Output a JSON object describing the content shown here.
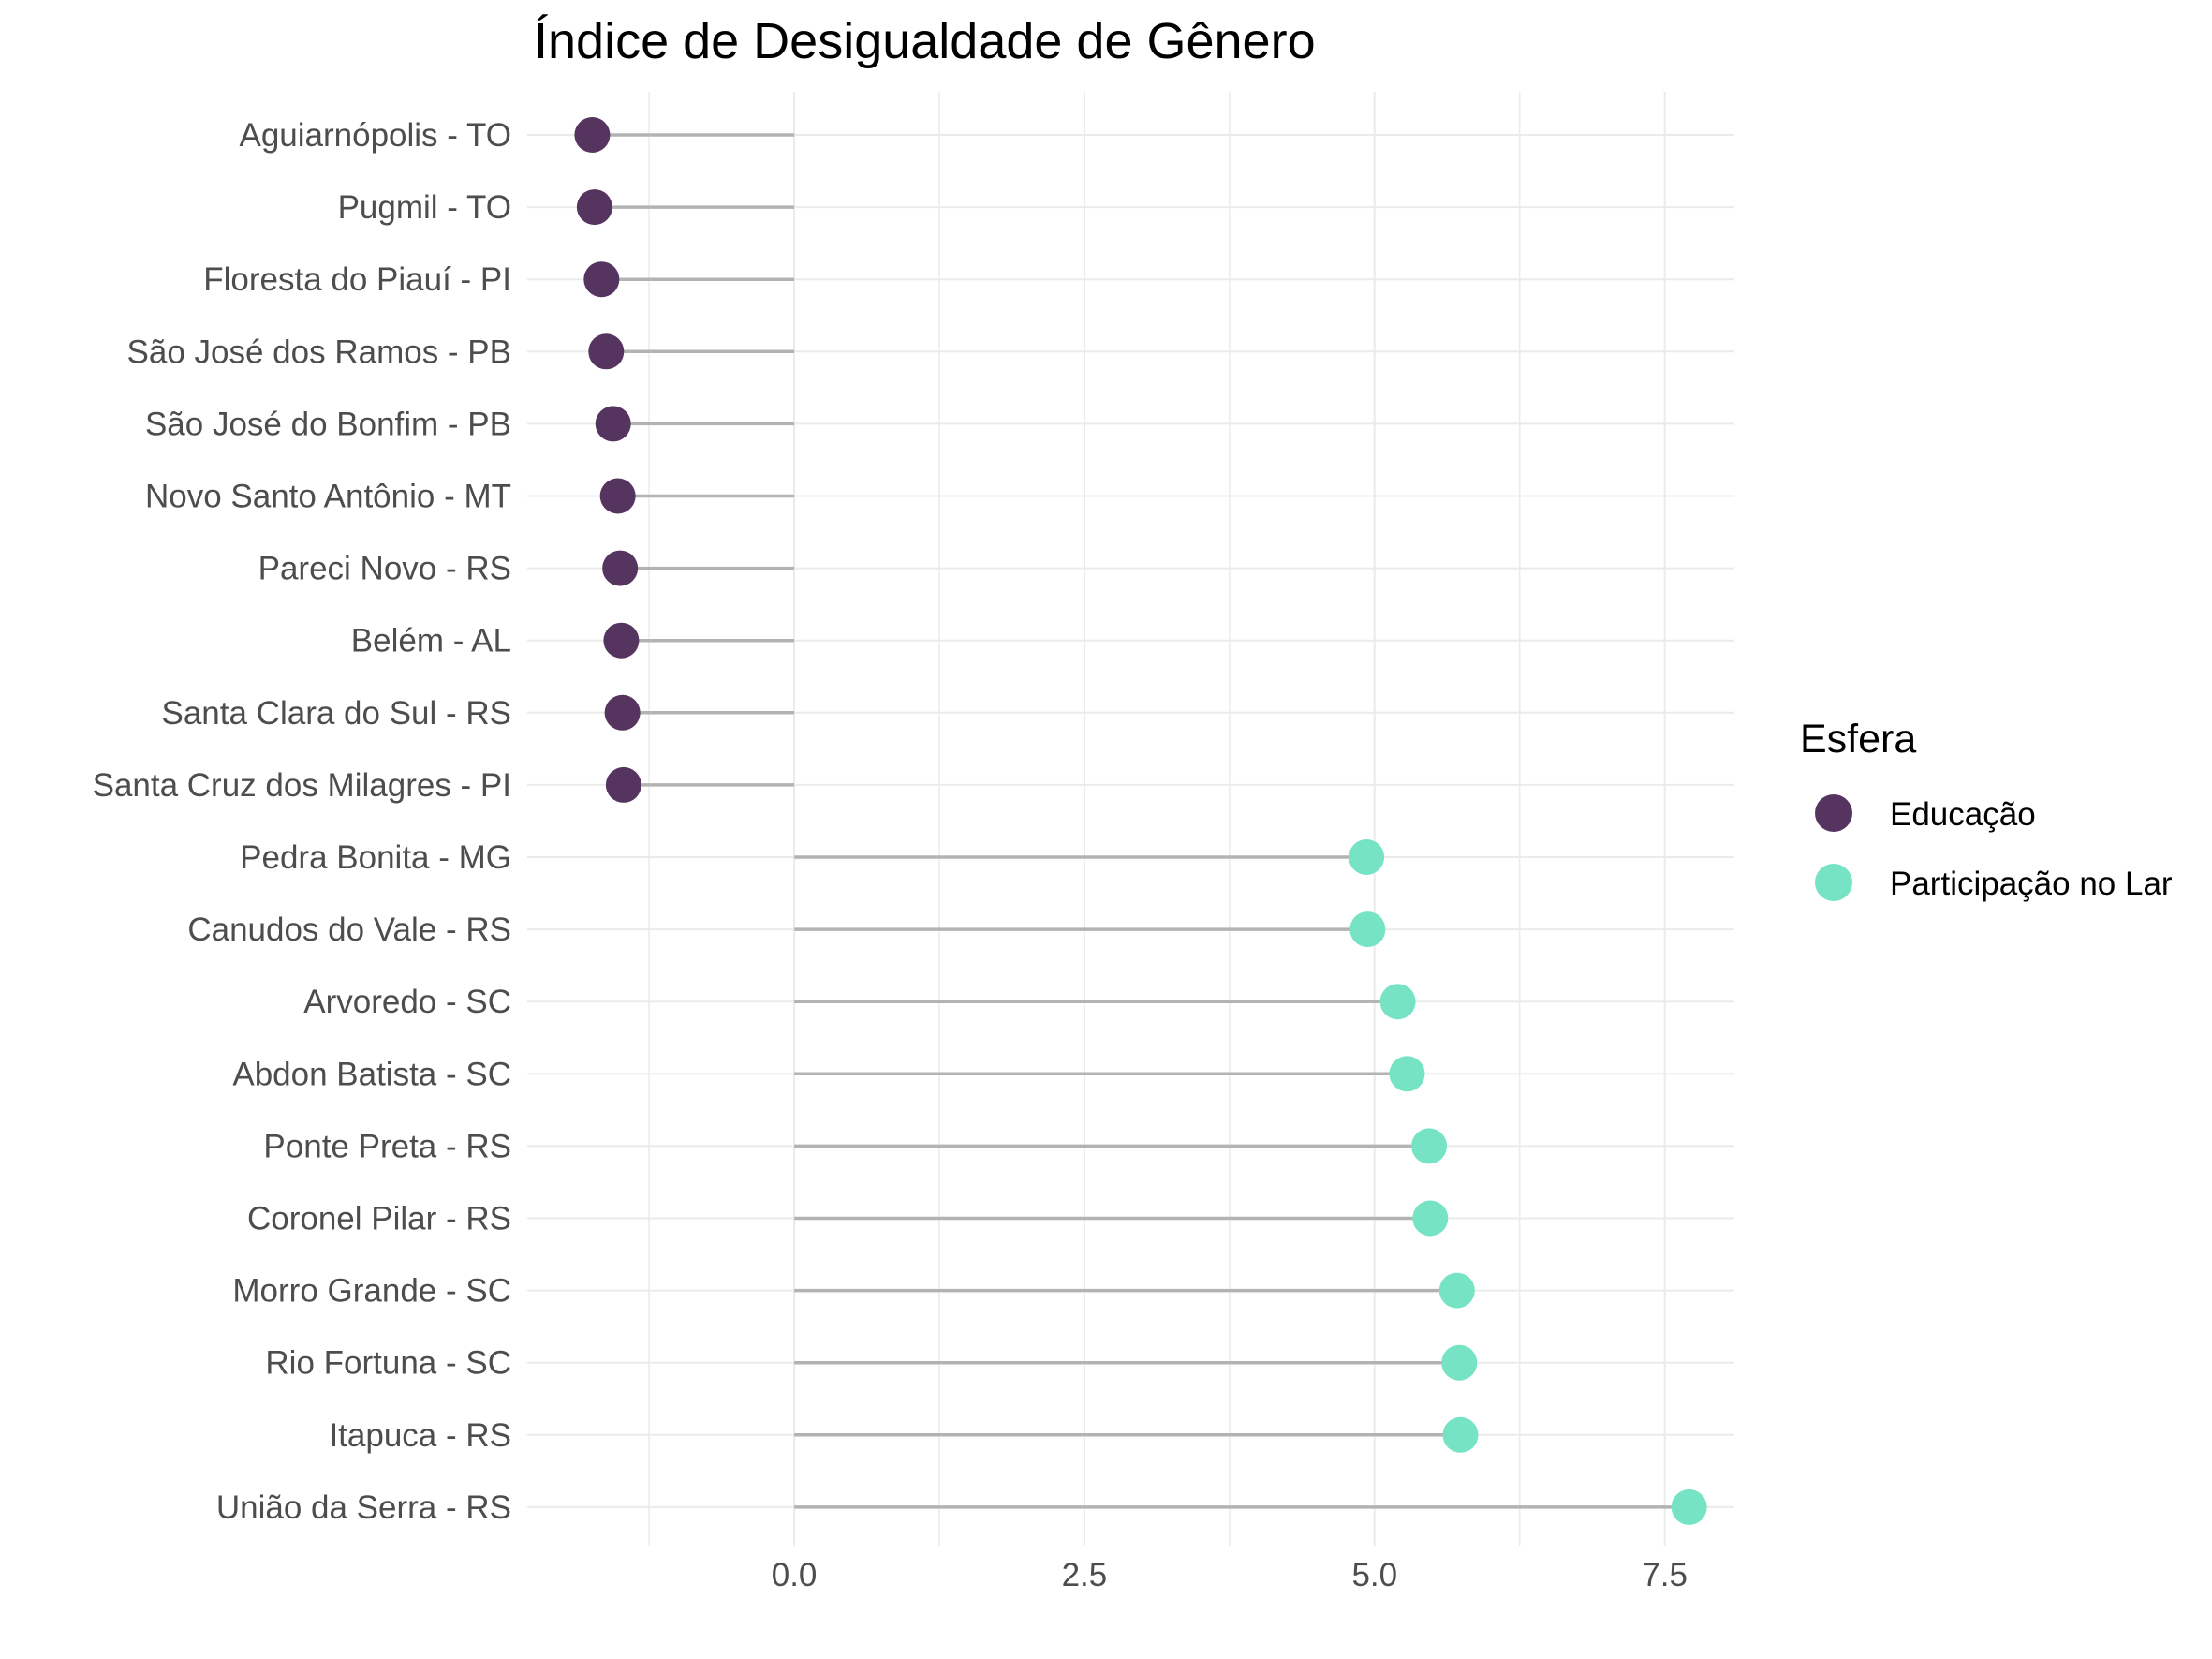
{
  "chart_data": {
    "type": "lollipop",
    "title": "Índice de Desigualdade de Gênero",
    "xlabel": "",
    "ylabel": "",
    "xlim": [
      -2.3,
      8.1
    ],
    "x_ticks": [
      0.0,
      2.5,
      5.0,
      7.5
    ],
    "x_tick_labels": [
      "0.0",
      "2.5",
      "5.0",
      "7.5"
    ],
    "grid": true,
    "legend": {
      "title": "Esfera",
      "position": "right",
      "entries": [
        {
          "label": "Educação",
          "color": "#55355F"
        },
        {
          "label": "Participação no Lar",
          "color": "#76E4C4"
        }
      ]
    },
    "categories": [
      "Aguiarnópolis - TO",
      "Pugmil - TO",
      "Floresta do Piauí - PI",
      "São José dos Ramos - PB",
      "São José do Bonfim - PB",
      "Novo Santo Antônio - MT",
      "Pareci Novo - RS",
      "Belém - AL",
      "Santa Clara do Sul - RS",
      "Santa Cruz dos Milagres - PI",
      "Pedra Bonita - MG",
      "Canudos do Vale - RS",
      "Arvoredo - SC",
      "Abdon Batista - SC",
      "Ponte Preta - RS",
      "Coronel Pilar - RS",
      "Morro Grande - SC",
      "Rio Fortuna - SC",
      "Itapuca - RS",
      "União da Serra - RS"
    ],
    "series": [
      {
        "name": "Educação",
        "color": "#55355F",
        "values": [
          -1.74,
          -1.72,
          -1.66,
          -1.62,
          -1.56,
          -1.52,
          -1.5,
          -1.49,
          -1.48,
          -1.47,
          null,
          null,
          null,
          null,
          null,
          null,
          null,
          null,
          null,
          null
        ]
      },
      {
        "name": "Participação no Lar",
        "color": "#76E4C4",
        "values": [
          null,
          null,
          null,
          null,
          null,
          null,
          null,
          null,
          null,
          null,
          4.93,
          4.94,
          5.2,
          5.28,
          5.47,
          5.48,
          5.71,
          5.73,
          5.74,
          7.71
        ]
      }
    ]
  }
}
